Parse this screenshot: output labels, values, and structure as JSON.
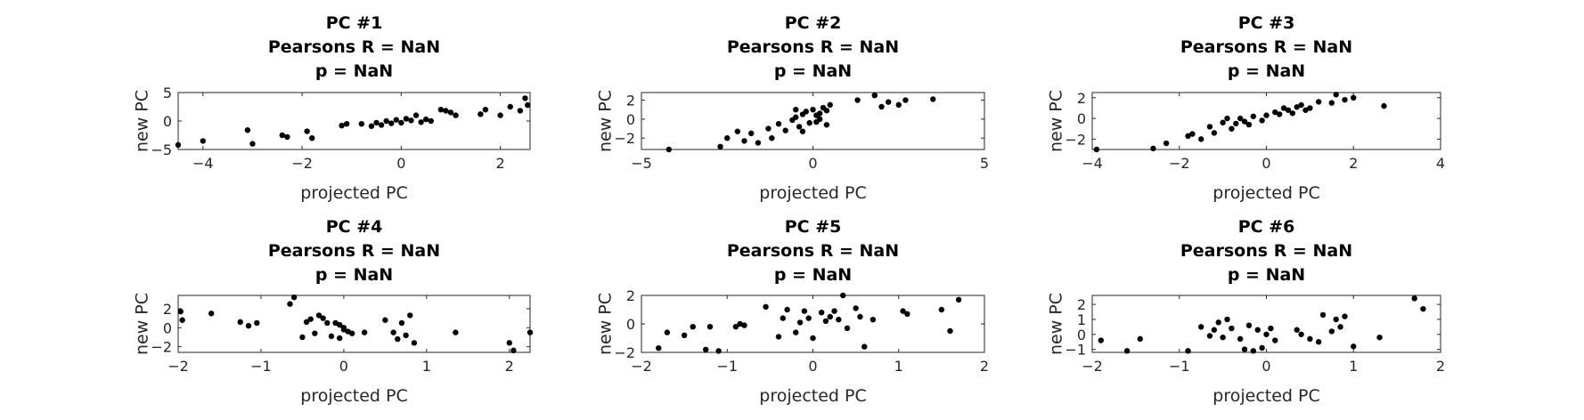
{
  "figure": {
    "background": "#ffffff",
    "axis_color": "#262626",
    "marker_color": "#000000"
  },
  "chart_data": [
    {
      "type": "scatter",
      "title": [
        "PC #1",
        "Pearsons R = NaN",
        "p = NaN"
      ],
      "xlabel": "projected PC",
      "ylabel": "new PC",
      "xlim": [
        -4.5,
        2.6
      ],
      "ylim": [
        -5,
        5
      ],
      "xticks": [
        -4,
        -2,
        0,
        2
      ],
      "yticks": [
        -5,
        0,
        5
      ],
      "x": [
        -4.5,
        -4.0,
        -3.1,
        -3.0,
        -2.4,
        -2.3,
        -1.9,
        -1.8,
        -1.2,
        -1.1,
        -0.8,
        -0.6,
        -0.5,
        -0.4,
        -0.3,
        -0.2,
        -0.1,
        0.0,
        0.1,
        0.2,
        0.3,
        0.4,
        0.5,
        0.6,
        0.8,
        0.9,
        1.0,
        1.1,
        1.6,
        1.7,
        2.0,
        2.2,
        2.4,
        2.5,
        2.55
      ],
      "y": [
        -4.2,
        -3.5,
        -1.6,
        -4.0,
        -2.5,
        -2.8,
        -1.8,
        -3.0,
        -0.8,
        -0.5,
        -0.5,
        -0.9,
        -0.3,
        -0.7,
        0.0,
        -0.4,
        0.2,
        -0.3,
        0.4,
        0.1,
        1.0,
        -0.2,
        0.3,
        0.0,
        2.0,
        1.8,
        1.5,
        1.0,
        1.2,
        2.0,
        1.0,
        2.5,
        1.8,
        4.0,
        2.8
      ]
    },
    {
      "type": "scatter",
      "title": [
        "PC #2",
        "Pearsons R = NaN",
        "p = NaN"
      ],
      "xlabel": "projected PC",
      "ylabel": "new PC",
      "xlim": [
        -5,
        5
      ],
      "ylim": [
        -3.2,
        2.8
      ],
      "xticks": [
        -5,
        0,
        5
      ],
      "yticks": [
        -2,
        0,
        2
      ],
      "x": [
        -4.2,
        -2.7,
        -2.5,
        -2.2,
        -2.0,
        -1.8,
        -1.6,
        -1.3,
        -1.2,
        -1.0,
        -0.8,
        -0.6,
        -0.5,
        -0.4,
        -0.3,
        -0.3,
        -0.2,
        -0.1,
        0.0,
        0.1,
        0.1,
        0.2,
        0.3,
        0.4,
        0.4,
        0.5,
        1.3,
        1.8,
        2.0,
        2.2,
        2.5,
        2.7,
        3.5,
        -0.5,
        0.2
      ],
      "y": [
        -3.2,
        -2.9,
        -2.0,
        -1.3,
        -2.3,
        -1.5,
        -2.5,
        -1.0,
        -2.0,
        -0.5,
        -1.2,
        -0.1,
        0.2,
        -0.8,
        0.5,
        -1.3,
        0.8,
        -0.4,
        1.0,
        0.4,
        -0.3,
        0.6,
        1.2,
        -0.6,
        0.9,
        1.5,
        2.0,
        2.5,
        1.3,
        1.8,
        1.5,
        2.0,
        2.1,
        1.0,
        0.0
      ]
    },
    {
      "type": "scatter",
      "title": [
        "PC #3",
        "Pearsons R = NaN",
        "p = NaN"
      ],
      "xlabel": "projected PC",
      "ylabel": "new PC",
      "xlim": [
        -4,
        4
      ],
      "ylim": [
        -3,
        2.5
      ],
      "xticks": [
        -4,
        -2,
        0,
        2,
        4
      ],
      "yticks": [
        -2,
        0,
        2
      ],
      "x": [
        -3.9,
        -2.6,
        -2.3,
        -1.8,
        -1.7,
        -1.5,
        -1.3,
        -1.2,
        -1.0,
        -0.9,
        -0.8,
        -0.7,
        -0.6,
        -0.5,
        -0.4,
        -0.3,
        -0.1,
        0.0,
        0.2,
        0.3,
        0.4,
        0.5,
        0.6,
        0.7,
        0.8,
        0.9,
        1.0,
        1.2,
        1.5,
        1.6,
        1.8,
        2.0,
        2.7
      ],
      "y": [
        -3.0,
        -2.9,
        -2.4,
        -1.7,
        -1.5,
        -2.0,
        -0.8,
        -1.4,
        -0.4,
        0.0,
        -1.0,
        -0.5,
        0.0,
        -0.3,
        -0.6,
        0.2,
        -0.2,
        0.3,
        0.6,
        0.4,
        1.0,
        0.8,
        0.5,
        1.1,
        1.3,
        0.8,
        1.0,
        1.6,
        1.5,
        2.3,
        1.8,
        2.0,
        1.2
      ]
    },
    {
      "type": "scatter",
      "title": [
        "PC #4",
        "Pearsons R = NaN",
        "p = NaN"
      ],
      "xlabel": "projected PC",
      "ylabel": "new PC",
      "xlim": [
        -2,
        2.25
      ],
      "ylim": [
        -2.6,
        3.4
      ],
      "xticks": [
        -2,
        -1,
        0,
        1,
        2
      ],
      "yticks": [
        -2,
        0,
        2
      ],
      "x": [
        -1.97,
        -1.95,
        -1.6,
        -1.25,
        -1.15,
        -1.05,
        -0.65,
        -0.6,
        -0.5,
        -0.45,
        -0.4,
        -0.35,
        -0.3,
        -0.25,
        -0.2,
        -0.15,
        -0.1,
        -0.05,
        0.0,
        0.05,
        0.1,
        0.25,
        0.5,
        0.6,
        0.65,
        0.7,
        0.75,
        0.8,
        0.85,
        1.35,
        2.0,
        2.05,
        2.25,
        0.0,
        -0.05
      ],
      "y": [
        1.7,
        0.8,
        1.5,
        0.6,
        0.2,
        0.5,
        2.5,
        3.2,
        -1.0,
        0.6,
        0.9,
        -0.6,
        1.3,
        1.0,
        0.5,
        -0.9,
        0.5,
        -1.1,
        0.0,
        -0.4,
        -0.6,
        -0.5,
        0.8,
        -0.5,
        -1.2,
        0.5,
        -0.8,
        1.3,
        -1.6,
        -0.5,
        -1.6,
        -2.4,
        -0.5,
        -0.2,
        0.3
      ]
    },
    {
      "type": "scatter",
      "title": [
        "PC #5",
        "Pearsons R = NaN",
        "p = NaN"
      ],
      "xlabel": "projected PC",
      "ylabel": "new PC",
      "xlim": [
        -2,
        2
      ],
      "ylim": [
        -2,
        2
      ],
      "xticks": [
        -2,
        -1,
        0,
        1,
        2
      ],
      "yticks": [
        -2,
        0,
        2
      ],
      "x": [
        -1.8,
        -1.7,
        -1.5,
        -1.4,
        -1.25,
        -1.2,
        -1.1,
        -0.9,
        -0.85,
        -0.8,
        -0.55,
        -0.4,
        -0.35,
        -0.3,
        -0.2,
        -0.15,
        -0.1,
        -0.05,
        0.0,
        0.1,
        0.15,
        0.2,
        0.25,
        0.3,
        0.35,
        0.4,
        0.5,
        0.55,
        0.6,
        0.7,
        1.05,
        1.1,
        1.5,
        1.6,
        1.7
      ],
      "y": [
        -1.7,
        -0.6,
        -0.8,
        -0.2,
        -1.8,
        -0.2,
        -1.9,
        -0.2,
        0.0,
        -0.1,
        1.2,
        -0.9,
        0.4,
        1.0,
        -0.6,
        0.1,
        0.9,
        0.4,
        -1.0,
        0.8,
        0.2,
        0.5,
        0.9,
        0.3,
        2.0,
        -0.3,
        1.1,
        0.5,
        -1.6,
        0.3,
        0.9,
        0.7,
        1.0,
        -0.5,
        1.7
      ]
    },
    {
      "type": "scatter",
      "title": [
        "PC #6",
        "Pearsons R = NaN",
        "p = NaN"
      ],
      "xlabel": "projected PC",
      "ylabel": "new PC",
      "xlim": [
        -2,
        2
      ],
      "ylim": [
        -1.2,
        2.6
      ],
      "xticks": [
        -2,
        -1,
        0,
        1,
        2
      ],
      "yticks": [
        -1,
        0,
        1,
        2
      ],
      "x": [
        -1.9,
        -1.6,
        -1.45,
        -0.9,
        -0.75,
        -0.65,
        -0.6,
        -0.55,
        -0.5,
        -0.45,
        -0.4,
        -0.3,
        -0.25,
        -0.2,
        -0.15,
        -0.1,
        -0.05,
        0.0,
        0.05,
        0.1,
        0.35,
        0.4,
        0.5,
        0.6,
        0.65,
        0.75,
        0.8,
        0.85,
        0.9,
        1.0,
        1.3,
        1.7,
        1.8
      ],
      "y": [
        -0.4,
        -1.1,
        -0.3,
        -1.1,
        0.5,
        -0.1,
        0.3,
        0.8,
        -0.2,
        1.0,
        0.4,
        -0.3,
        -1.0,
        0.6,
        -1.1,
        0.3,
        -0.9,
        0.0,
        0.4,
        -0.4,
        0.3,
        0.0,
        -0.3,
        -0.5,
        1.3,
        0.2,
        1.0,
        0.5,
        1.2,
        -0.8,
        -0.2,
        2.4,
        1.7
      ]
    }
  ]
}
